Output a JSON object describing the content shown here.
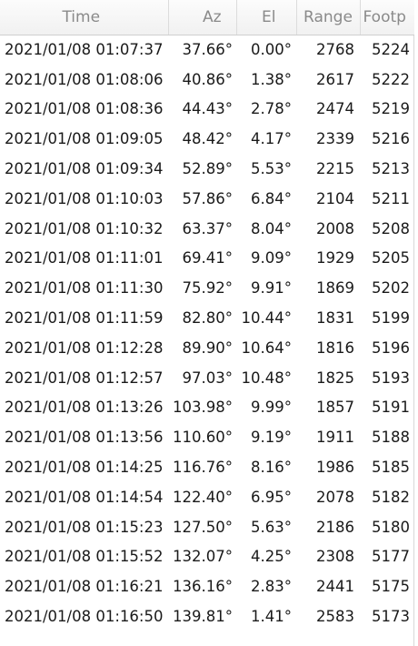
{
  "table": {
    "headers": [
      "Time",
      "Az",
      "El",
      "Range",
      "Footp"
    ],
    "rows": [
      [
        "2021/01/08 01:07:37",
        "37.66°",
        "0.00°",
        "2768",
        "5224"
      ],
      [
        "2021/01/08 01:08:06",
        "40.86°",
        "1.38°",
        "2617",
        "5222"
      ],
      [
        "2021/01/08 01:08:36",
        "44.43°",
        "2.78°",
        "2474",
        "5219"
      ],
      [
        "2021/01/08 01:09:05",
        "48.42°",
        "4.17°",
        "2339",
        "5216"
      ],
      [
        "2021/01/08 01:09:34",
        "52.89°",
        "5.53°",
        "2215",
        "5213"
      ],
      [
        "2021/01/08 01:10:03",
        "57.86°",
        "6.84°",
        "2104",
        "5211"
      ],
      [
        "2021/01/08 01:10:32",
        "63.37°",
        "8.04°",
        "2008",
        "5208"
      ],
      [
        "2021/01/08 01:11:01",
        "69.41°",
        "9.09°",
        "1929",
        "5205"
      ],
      [
        "2021/01/08 01:11:30",
        "75.92°",
        "9.91°",
        "1869",
        "5202"
      ],
      [
        "2021/01/08 01:11:59",
        "82.80°",
        "10.44°",
        "1831",
        "5199"
      ],
      [
        "2021/01/08 01:12:28",
        "89.90°",
        "10.64°",
        "1816",
        "5196"
      ],
      [
        "2021/01/08 01:12:57",
        "97.03°",
        "10.48°",
        "1825",
        "5193"
      ],
      [
        "2021/01/08 01:13:26",
        "103.98°",
        "9.99°",
        "1857",
        "5191"
      ],
      [
        "2021/01/08 01:13:56",
        "110.60°",
        "9.19°",
        "1911",
        "5188"
      ],
      [
        "2021/01/08 01:14:25",
        "116.76°",
        "8.16°",
        "1986",
        "5185"
      ],
      [
        "2021/01/08 01:14:54",
        "122.40°",
        "6.95°",
        "2078",
        "5182"
      ],
      [
        "2021/01/08 01:15:23",
        "127.50°",
        "5.63°",
        "2186",
        "5180"
      ],
      [
        "2021/01/08 01:15:52",
        "132.07°",
        "4.25°",
        "2308",
        "5177"
      ],
      [
        "2021/01/08 01:16:21",
        "136.16°",
        "2.83°",
        "2441",
        "5175"
      ],
      [
        "2021/01/08 01:16:50",
        "139.81°",
        "1.41°",
        "2583",
        "5173"
      ]
    ]
  }
}
